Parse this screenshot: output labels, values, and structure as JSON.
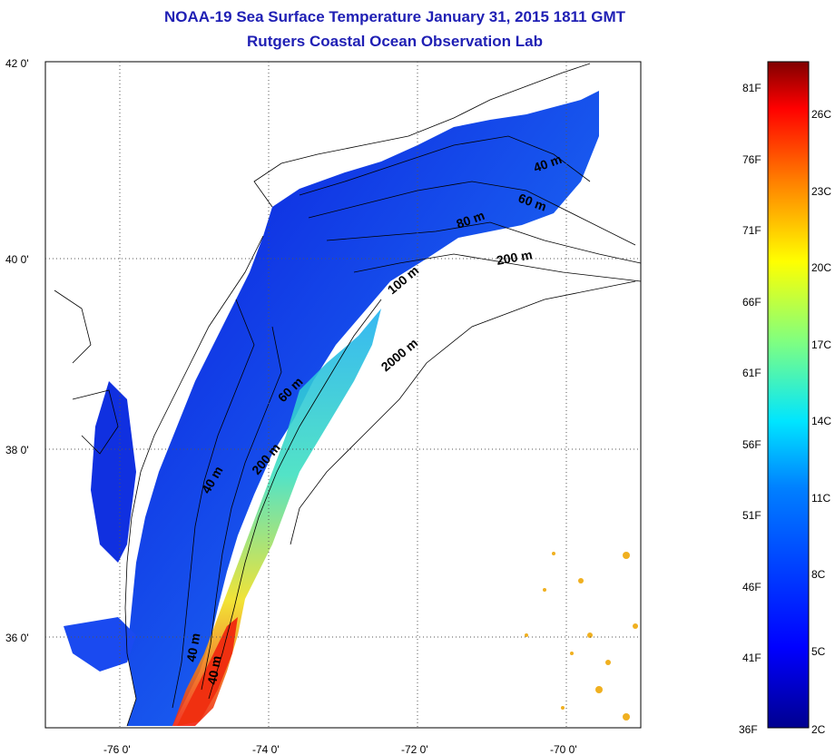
{
  "titles": {
    "line1": "NOAA-19 Sea Surface Temperature January 31, 2015 1811 GMT",
    "line2": "Rutgers Coastal Ocean Observation Lab"
  },
  "map": {
    "lat_labels": [
      "42 0'",
      "40 0'",
      "38 0'",
      "36 0'"
    ],
    "lon_labels": [
      "-76 0'",
      "-74 0'",
      "-72 0'",
      "-70 0'"
    ],
    "lat_range": [
      35,
      42
    ],
    "lon_range": [
      -77,
      -69
    ],
    "contour_labels": [
      "40 m",
      "60 m",
      "80 m",
      "100 m",
      "200 m",
      "2000 m",
      "60 m",
      "200 m",
      "40 m",
      "40 m",
      "40 m"
    ]
  },
  "colorbar": {
    "fahrenheit_labels": [
      "81F",
      "76F",
      "71F",
      "66F",
      "61F",
      "56F",
      "51F",
      "46F",
      "41F",
      "36F"
    ],
    "celsius_labels": [
      "26C",
      "23C",
      "20C",
      "17C",
      "14C",
      "11C",
      "8C",
      "5C",
      "2C"
    ],
    "colors": [
      "#00008f",
      "#0000ff",
      "#0080ff",
      "#00ffff",
      "#80ff80",
      "#ffff00",
      "#ff8000",
      "#ff0000",
      "#800000"
    ]
  }
}
